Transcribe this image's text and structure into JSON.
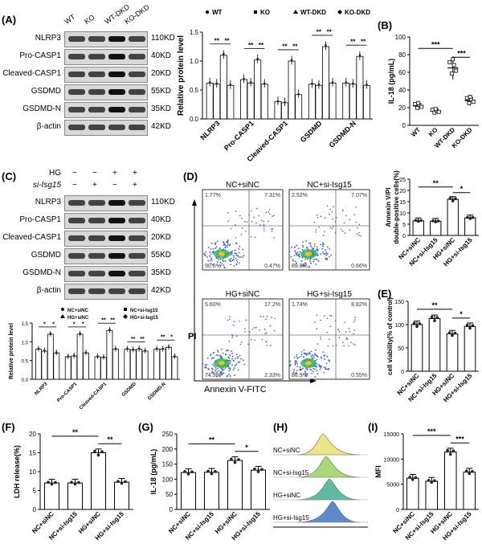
{
  "panels": {
    "A": "(A)",
    "B": "(B)",
    "C": "(C)",
    "D": "(D)",
    "E": "(E)",
    "F": "(F)",
    "G": "(G)",
    "H": "(H)",
    "I": "(I)"
  },
  "blotA": {
    "lanes": [
      "WT",
      "KO",
      "WT-DKD",
      "KO-DKD"
    ],
    "proteins": [
      "NLRP3",
      "Pro-CASP1",
      "Cleaved-CASP1",
      "GSDMD",
      "GSDMD-N",
      "β-actin"
    ],
    "sizes": [
      "110KD",
      "40KD",
      "20KD",
      "55KD",
      "35KD",
      "42KD"
    ]
  },
  "blotC": {
    "row1_label": "HG",
    "row2_label": "si-Isg15",
    "row1": [
      "−",
      "−",
      "+",
      "+"
    ],
    "row2": [
      "−",
      "+",
      "−",
      "+"
    ],
    "proteins": [
      "NLRP3",
      "Pro-CASP1",
      "Cleaved-CASP1",
      "GSDMD",
      "GSDMD-N",
      "β-actin"
    ],
    "sizes": [
      "110KD",
      "40KD",
      "20KD",
      "55KD",
      "35KD",
      "42KD"
    ]
  },
  "flowD": {
    "xlabel": "Annexin V-FITC",
    "ylabel": "PI",
    "plots": [
      {
        "title": "NC+siNC",
        "q": [
          "1.77%",
          "7.31%",
          "90.6%",
          "0.47%"
        ]
      },
      {
        "title": "NC+si-Isg15",
        "q": [
          "2.52%",
          "7.07%",
          "89.8%",
          "0.66%"
        ]
      },
      {
        "title": "HG+siNC",
        "q": [
          "5.60%",
          "17.2%",
          "74.9%",
          "2.33%"
        ]
      },
      {
        "title": "HG+si-Isg15",
        "q": [
          "1.74%",
          "8.82%",
          "88.9%",
          "0.55%"
        ]
      }
    ]
  },
  "flowH": {
    "labels": [
      "NC+siNC",
      "NC+si-Isg15",
      "HG+siNC",
      "HG+si-Isg15"
    ],
    "colors": [
      "#e9e27a",
      "#9fd36b",
      "#4cb39a",
      "#4a7fc4"
    ]
  },
  "chart_data": [
    {
      "id": "A-bar",
      "type": "bar",
      "ylabel": "Relative protein level",
      "ylim": [
        0,
        1.5
      ],
      "yticks": [
        "0.0",
        "0.5",
        "1.0",
        "1.5"
      ],
      "categories": [
        "NLRP3",
        "Pro-CASP1",
        "Cleaved-CASP1",
        "GSDMD",
        "GSDMD-N"
      ],
      "legend": [
        "WT",
        "KO",
        "WT-DKD",
        "KO-DKD"
      ],
      "series": [
        {
          "name": "WT",
          "values": [
            0.62,
            0.68,
            0.3,
            0.6,
            0.62
          ]
        },
        {
          "name": "KO",
          "values": [
            0.6,
            0.62,
            0.28,
            0.58,
            0.6
          ]
        },
        {
          "name": "WT-DKD",
          "values": [
            1.1,
            1.02,
            1.0,
            1.25,
            1.08
          ]
        },
        {
          "name": "KO-DKD",
          "values": [
            0.58,
            0.6,
            0.42,
            0.62,
            0.58
          ]
        }
      ],
      "sig": [
        "**",
        "**",
        "**",
        "**",
        "**",
        "**",
        "**",
        "**",
        "**",
        "**"
      ]
    },
    {
      "id": "B",
      "type": "scatter",
      "ylabel": "IL-18 (pg/mL)",
      "ylim": [
        0,
        100
      ],
      "yticks": [
        "0",
        "20",
        "40",
        "60",
        "80",
        "100"
      ],
      "categories": [
        "WT",
        "KO",
        "WT-DKD",
        "KO-DKD"
      ],
      "values": [
        22,
        16,
        65,
        28
      ],
      "sig": [
        "***",
        "***"
      ]
    },
    {
      "id": "C-bar",
      "type": "bar",
      "ylabel": "Relative protein level",
      "ylim": [
        0,
        1.5
      ],
      "yticks": [
        "0.0",
        "0.5",
        "1.0",
        "1.5"
      ],
      "categories": [
        "NLRP3",
        "Pro-CASP1",
        "Cleaved-CASP1",
        "GSDMD",
        "GSDMD-N"
      ],
      "legend": [
        "NC+siNC",
        "NC+si-Isg15",
        "HG+siNC",
        "HG+si-Isg15"
      ],
      "series": [
        {
          "name": "NC+siNC",
          "values": [
            0.8,
            0.6,
            0.6,
            0.8,
            0.8
          ]
        },
        {
          "name": "NC+si-Isg15",
          "values": [
            0.75,
            0.62,
            0.58,
            0.78,
            0.8
          ]
        },
        {
          "name": "HG+siNC",
          "values": [
            1.2,
            1.2,
            1.3,
            0.8,
            0.85
          ]
        },
        {
          "name": "HG+si-Isg15",
          "values": [
            0.7,
            0.7,
            0.8,
            0.75,
            0.6
          ]
        }
      ],
      "sig": [
        "*",
        "*",
        "*",
        "*",
        "**",
        "**",
        "**",
        "**",
        "**",
        "*"
      ]
    },
    {
      "id": "D-bar",
      "type": "bar",
      "ylabel": "Annexin V/PI double-positive cells(%)",
      "ylim": [
        0,
        25
      ],
      "yticks": [
        "0",
        "5",
        "10",
        "15",
        "20",
        "25"
      ],
      "categories": [
        "NC+siNC",
        "NC+si-Isg15",
        "HG+siNC",
        "HG+si-Isg15"
      ],
      "values": [
        6.5,
        6.3,
        16,
        7.8
      ],
      "sig": [
        "**",
        "*"
      ]
    },
    {
      "id": "E",
      "type": "bar",
      "ylabel": "cell viability(% of control)",
      "ylim": [
        0,
        150
      ],
      "yticks": [
        "0",
        "50",
        "100",
        "150"
      ],
      "categories": [
        "NC+siNC",
        "NC+si-Isg15",
        "HG+siNC",
        "HG+si-Isg15"
      ],
      "values": [
        100,
        113,
        80,
        96
      ],
      "sig": [
        "**",
        "*"
      ]
    },
    {
      "id": "F",
      "type": "bar",
      "ylabel": "LDH release(%)",
      "ylim": [
        0,
        20
      ],
      "yticks": [
        "0",
        "5",
        "10",
        "15",
        "20"
      ],
      "categories": [
        "NC+siNC",
        "NC+si-Isg15",
        "HG+siNC",
        "HG+si-Isg15"
      ],
      "values": [
        7,
        7,
        15,
        7.2
      ],
      "sig": [
        "**",
        "**"
      ]
    },
    {
      "id": "G",
      "type": "bar",
      "ylabel": "IL-18 (pg/mL)",
      "ylim": [
        0,
        250
      ],
      "yticks": [
        "0",
        "50",
        "100",
        "150",
        "200",
        "250"
      ],
      "categories": [
        "NC+siNC",
        "NC+si-Isg15",
        "HG+siNC",
        "HG+si-Isg15"
      ],
      "values": [
        122,
        123,
        162,
        130
      ],
      "sig": [
        "**",
        "*"
      ]
    },
    {
      "id": "I",
      "type": "bar",
      "ylabel": "MFI",
      "ylim": [
        0,
        15000
      ],
      "yticks": [
        "0",
        "5000",
        "10000",
        "15000"
      ],
      "categories": [
        "NC+siNC",
        "NC+si-Isg15",
        "HG+siNC",
        "HG+si-Isg15"
      ],
      "values": [
        6200,
        5600,
        11400,
        7400
      ],
      "sig": [
        "***",
        "***"
      ]
    }
  ]
}
